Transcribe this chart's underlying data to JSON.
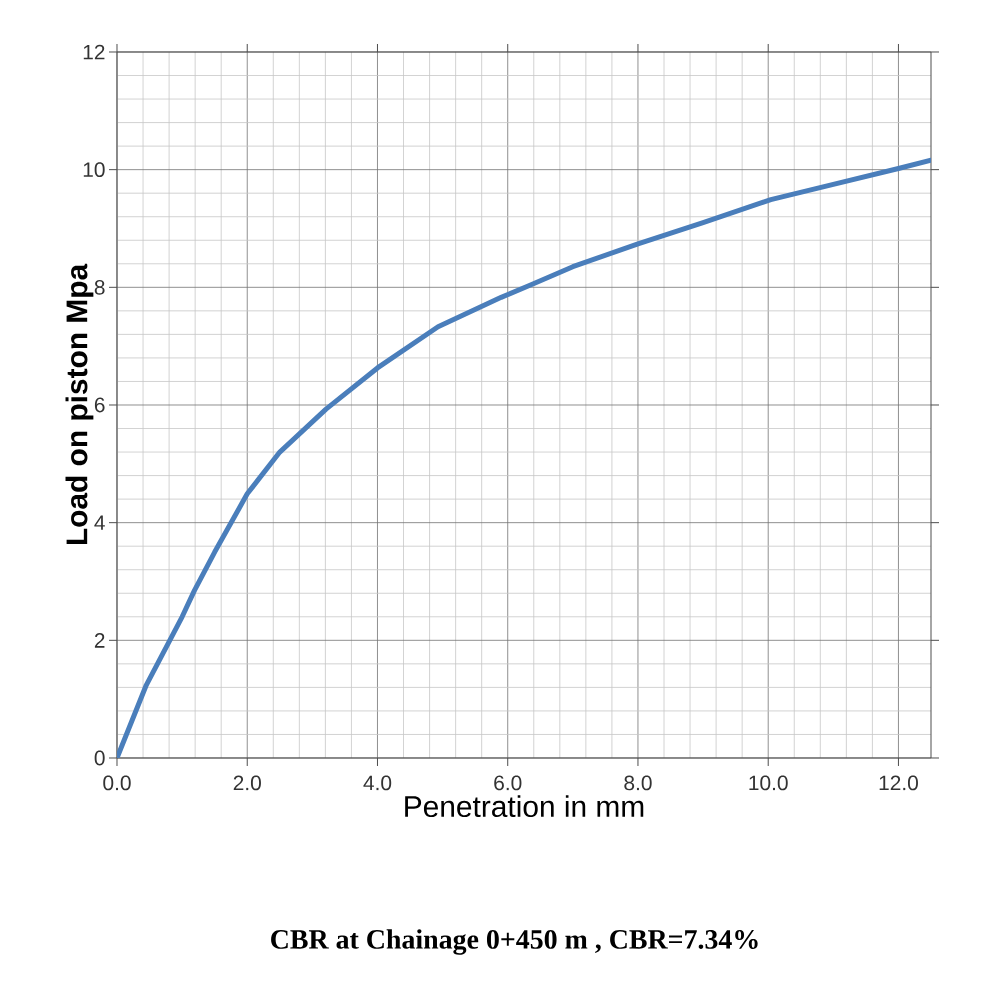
{
  "chart_data": {
    "type": "line",
    "xlabel": "Penetration in mm",
    "ylabel": "Load on piston Mpa",
    "annotations": [
      "CBR at Chainage 0+450 m , CBR=7.34%"
    ],
    "x": [
      0,
      0.45,
      1.0,
      1.19,
      1.5,
      2.0,
      2.5,
      3.21,
      4.0,
      4.93,
      5.9,
      6.35,
      7.0,
      8.0,
      9.0,
      10.04,
      11.0,
      12.0,
      12.5
    ],
    "values": [
      0,
      1.24,
      2.4,
      2.85,
      3.5,
      4.49,
      5.2,
      5.93,
      6.63,
      7.33,
      7.83,
      8.04,
      8.35,
      8.74,
      9.1,
      9.49,
      9.75,
      10.02,
      10.16
    ],
    "color": "#4a7ebb",
    "marker": "none",
    "line_style": "solid",
    "grid": true,
    "xlim": [
      0,
      12.5
    ],
    "ylim": [
      0,
      12
    ],
    "xticks": [
      {
        "value": 0,
        "label": "0.0"
      },
      {
        "value": 2,
        "label": "2.0"
      },
      {
        "value": 4,
        "label": "4.0"
      },
      {
        "value": 6,
        "label": "6.0"
      },
      {
        "value": 8,
        "label": "8.0"
      },
      {
        "value": 10,
        "label": "10.0"
      },
      {
        "value": 12,
        "label": "12.0"
      }
    ],
    "yticks": [
      0,
      2,
      4,
      6,
      8,
      10,
      12
    ]
  }
}
